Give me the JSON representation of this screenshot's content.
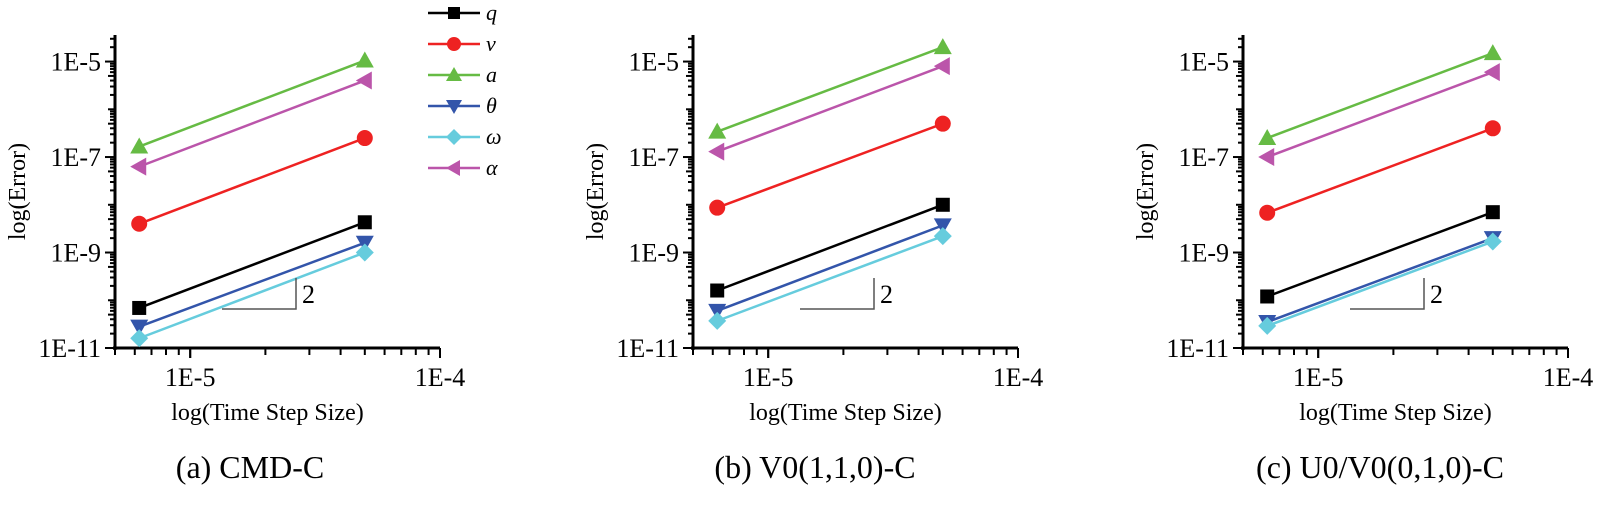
{
  "legend": [
    {
      "key": "q",
      "label": "q",
      "color": "#000000",
      "marker": "square"
    },
    {
      "key": "v",
      "label": "v",
      "color": "#ee2222",
      "marker": "circle"
    },
    {
      "key": "a",
      "label": "a",
      "color": "#66bb44",
      "marker": "triangle-up"
    },
    {
      "key": "theta",
      "label": "θ",
      "color": "#3355aa",
      "marker": "triangle-down"
    },
    {
      "key": "omega",
      "label": "ω",
      "color": "#66ccdd",
      "marker": "diamond"
    },
    {
      "key": "alpha",
      "label": "α",
      "color": "#bb55aa",
      "marker": "triangle-left"
    }
  ],
  "chart_data": [
    {
      "type": "line",
      "caption": "(a)  CMD-C",
      "xlabel": "log(Time Step Size)",
      "ylabel": "log(Error)",
      "xscale": "log",
      "yscale": "log",
      "xlim": [
        5e-06,
        0.0001
      ],
      "ylim": [
        1e-11,
        3.6e-05
      ],
      "xticks": [
        "1E-5",
        "1E-4"
      ],
      "yticks": [
        "1E-5",
        "1E-7",
        "1E-9",
        "1E-11"
      ],
      "slope_label": "2",
      "legend_position": "top-right",
      "x": [
        6.25e-06,
        5e-05
      ],
      "series": [
        {
          "name": "q",
          "values": [
            6.9e-11,
            4.3e-09
          ]
        },
        {
          "name": "v",
          "values": [
            4e-09,
            2.5e-07
          ]
        },
        {
          "name": "a",
          "values": [
            1.66e-07,
            1.05e-05
          ]
        },
        {
          "name": "θ",
          "values": [
            2.8e-11,
            1.6e-09
          ]
        },
        {
          "name": "ω",
          "values": [
            1.6e-11,
            1e-09
          ]
        },
        {
          "name": "α",
          "values": [
            6.3e-08,
            4e-06
          ]
        }
      ]
    },
    {
      "type": "line",
      "caption": "(b)  V0(1,1,0)-C",
      "xlabel": "log(Time Step Size)",
      "ylabel": "log(Error)",
      "xscale": "log",
      "yscale": "log",
      "xlim": [
        5e-06,
        0.0001
      ],
      "ylim": [
        1e-11,
        3.6e-05
      ],
      "xticks": [
        "1E-5",
        "1E-4"
      ],
      "yticks": [
        "1E-5",
        "1E-7",
        "1E-9",
        "1E-11"
      ],
      "slope_label": "2",
      "x": [
        6.25e-06,
        5e-05
      ],
      "series": [
        {
          "name": "q",
          "values": [
            1.6e-10,
            1e-08
          ]
        },
        {
          "name": "v",
          "values": [
            8.7e-09,
            5e-07
          ]
        },
        {
          "name": "a",
          "values": [
            3.4e-07,
            2e-05
          ]
        },
        {
          "name": "θ",
          "values": [
            6e-11,
            3.7e-09
          ]
        },
        {
          "name": "ω",
          "values": [
            3.7e-11,
            2.2e-09
          ]
        },
        {
          "name": "α",
          "values": [
            1.3e-07,
            8e-06
          ]
        }
      ]
    },
    {
      "type": "line",
      "caption": "(c)  U0/V0(0,1,0)-C",
      "xlabel": "log(Time Step Size)",
      "ylabel": "log(Error)",
      "xscale": "log",
      "yscale": "log",
      "xlim": [
        5e-06,
        0.0001
      ],
      "ylim": [
        1e-11,
        3.6e-05
      ],
      "xticks": [
        "1E-5",
        "1E-4"
      ],
      "yticks": [
        "1E-5",
        "1E-7",
        "1E-9",
        "1E-11"
      ],
      "slope_label": "2",
      "x": [
        6.25e-06,
        5e-05
      ],
      "series": [
        {
          "name": "q",
          "values": [
            1.2e-10,
            7e-09
          ]
        },
        {
          "name": "v",
          "values": [
            6.8e-09,
            4e-07
          ]
        },
        {
          "name": "a",
          "values": [
            2.5e-07,
            1.5e-05
          ]
        },
        {
          "name": "θ",
          "values": [
            3.5e-11,
            2e-09
          ]
        },
        {
          "name": "ω",
          "values": [
            2.9e-11,
            1.7e-09
          ]
        },
        {
          "name": "α",
          "values": [
            1e-07,
            6e-06
          ]
        }
      ]
    }
  ]
}
